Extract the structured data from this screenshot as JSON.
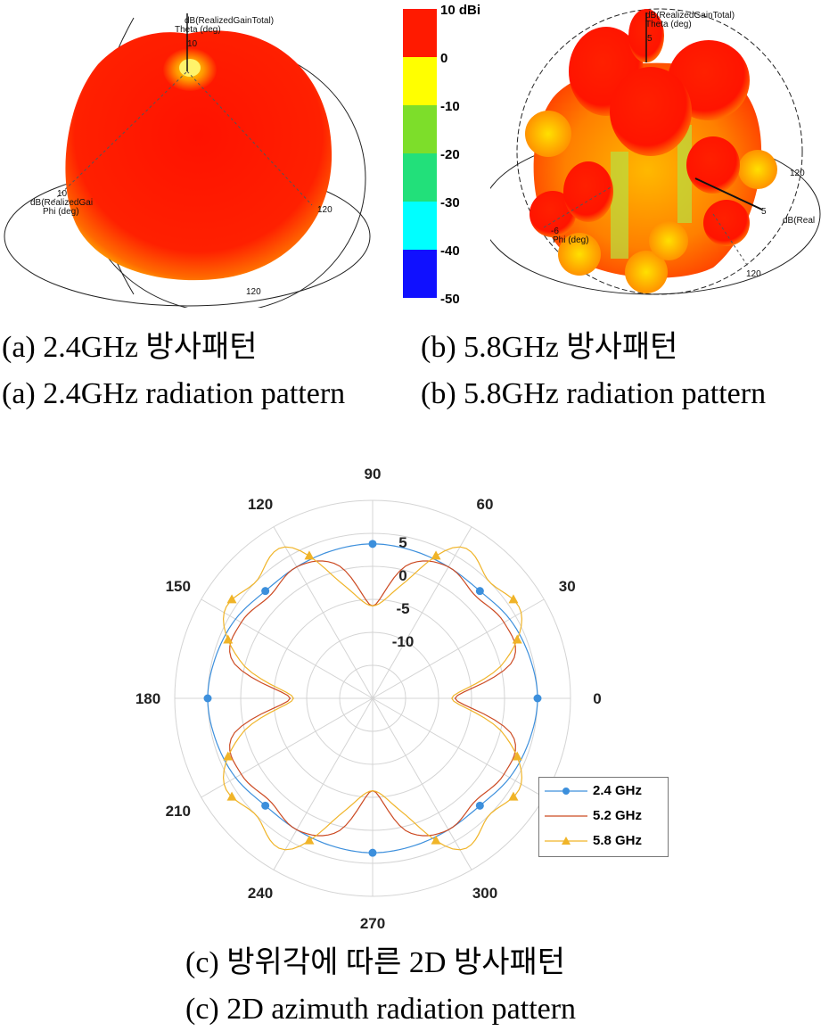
{
  "figures": {
    "a": {
      "plot_title": "dB(RealizedGainTotal)",
      "theta_label": "Theta (deg)",
      "theta_tick": "10",
      "gain_label": "dB(RealizedGai",
      "phi_label": "Phi (deg)",
      "ring_tick_1": "120",
      "ring_tick_2": "120",
      "side_tick": "10",
      "caption_ko": "(a) 2.4GHz 방사패턴",
      "caption_en": "(a) 2.4GHz radiation pattern"
    },
    "b": {
      "plot_title": "dB(RealizedGainTotal)",
      "theta_label": "Theta (deg)",
      "theta_tick": "5",
      "gain_label": "dB(Real",
      "phi_label": "Phi (deg)",
      "ring_tick_1": "120",
      "ring_tick_2": "120",
      "axis_tick": "5",
      "left_tick": "-6",
      "caption_ko": "(b) 5.8GHz 방사패턴",
      "caption_en": "(b) 5.8GHz radiation pattern"
    },
    "c": {
      "caption_ko": "(c) 방위각에 따른 2D 방사패턴",
      "caption_en": "(c) 2D azimuth radiation pattern"
    }
  },
  "colorbar": {
    "labels": [
      "10 dBi",
      "0",
      "-10",
      "-20",
      "-30",
      "-40",
      "-50"
    ],
    "colors": [
      "#ff1a00",
      "#ffff00",
      "#7dde2a",
      "#22e07a",
      "#00ffff",
      "#1010ff"
    ]
  },
  "chart_data": {
    "type": "polar",
    "angle_ticks": [
      "0",
      "30",
      "60",
      "90",
      "120",
      "150",
      "180",
      "210",
      "240",
      "270",
      "300",
      "330"
    ],
    "r_ticks": [
      "5",
      "0",
      "-5",
      "-10"
    ],
    "r_range": [
      -20,
      10
    ],
    "angles_deg": [
      0,
      15,
      30,
      45,
      60,
      75,
      90,
      105,
      120,
      135,
      150,
      165,
      180,
      195,
      210,
      225,
      240,
      255,
      270,
      285,
      300,
      315,
      330,
      345
    ],
    "series": [
      {
        "name": "2.4 GHz",
        "color": "#3c8fdc",
        "marker": "circle",
        "values": [
          5,
          4.6,
          4,
          3,
          3,
          3.2,
          3.4,
          3.2,
          3,
          3,
          4,
          4.6,
          5,
          4.6,
          4,
          3,
          3,
          3.2,
          3.4,
          3.2,
          3,
          3,
          4,
          4.6
        ]
      },
      {
        "name": "5.2 GHz",
        "color": "#cc4a22",
        "marker": "none",
        "values": [
          -7.5,
          2,
          3,
          2,
          3,
          1,
          -6,
          1,
          3,
          2,
          3,
          2,
          -7.5,
          2,
          3,
          2,
          3,
          1,
          -6,
          1,
          3,
          2,
          3,
          2
        ]
      },
      {
        "name": "5.8 GHz",
        "color": "#f0b428",
        "marker": "triangle",
        "values": [
          -8,
          0.5,
          6,
          5,
          6.5,
          -2,
          -6,
          -2,
          6.5,
          5,
          6,
          0.5,
          -8,
          0.5,
          6,
          5,
          6.5,
          -2,
          -6,
          -2,
          6.5,
          5,
          6,
          0.5
        ]
      }
    ],
    "legend_position": "bottom-right"
  }
}
